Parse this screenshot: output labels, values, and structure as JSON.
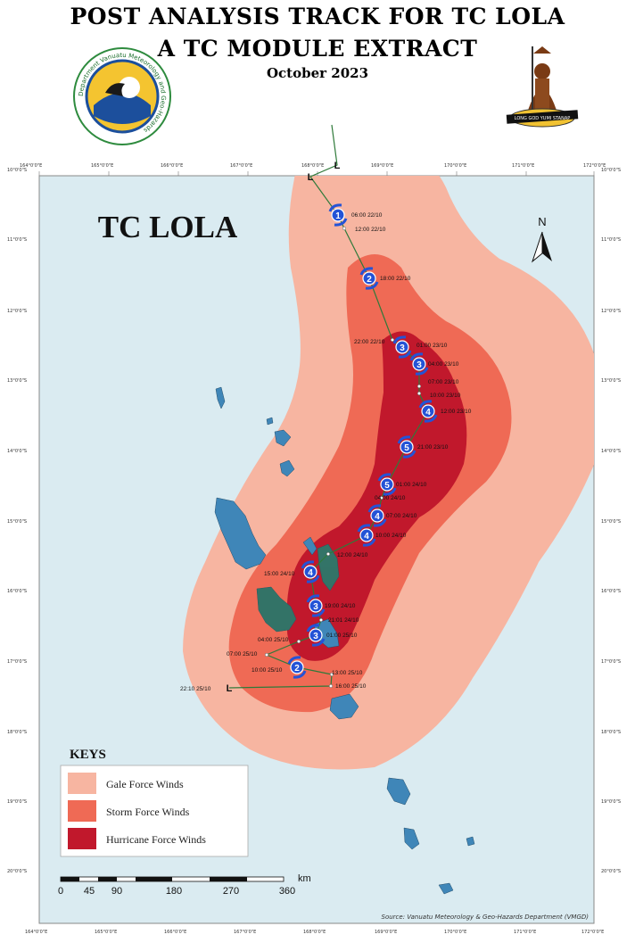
{
  "header": {
    "title_line1": "POST ANALYSIS TRACK FOR TC LOLA",
    "title_line2": "A TC MODULE EXTRACT",
    "date": "October 2023"
  },
  "logos": {
    "left_ring_text": "Department Vanuatu Meteorology and Geo-Hazards",
    "right_motto": "LONG GOD YUMI STANAP"
  },
  "map": {
    "title": "TC LOLA",
    "north_label": "N",
    "longitudes": [
      "164°0'0\"E",
      "165°0'0\"E",
      "166°0'0\"E",
      "167°0'0\"E",
      "168°0'0\"E",
      "169°0'0\"E",
      "170°0'0\"E",
      "171°0'0\"E",
      "172°0'0\"E"
    ],
    "latitudes": [
      "10°0'0\"S",
      "11°0'0\"S",
      "12°0'0\"S",
      "13°0'0\"S",
      "14°0'0\"S",
      "15°0'0\"S",
      "16°0'0\"S",
      "17°0'0\"S",
      "18°0'0\"S",
      "19°0'0\"S",
      "20°0'0\"S"
    ],
    "colors": {
      "sea": "#daebf1",
      "gale": "#f7b5a1",
      "storm": "#ef6a55",
      "hurricane": "#c1182c",
      "land": "#3f86b8",
      "track": "#2f7a3a",
      "symbol": "#2453d6"
    },
    "track": [
      {
        "marker": "L",
        "time": ""
      },
      {
        "marker": "L",
        "time": ""
      },
      {
        "marker": "1",
        "time": "06:00 22/10"
      },
      {
        "marker": "",
        "time": "12:00 22/10"
      },
      {
        "marker": "2",
        "time": "18:00 22/10"
      },
      {
        "marker": "",
        "time": "22:00 22/10"
      },
      {
        "marker": "3",
        "time": "01:00 23/10"
      },
      {
        "marker": "3",
        "time": "04:00 23/10"
      },
      {
        "marker": "",
        "time": "07:00 23/10"
      },
      {
        "marker": "",
        "time": "10:00 23/10"
      },
      {
        "marker": "4",
        "time": "12:00 23/10"
      },
      {
        "marker": "5",
        "time": "21:00 23/10"
      },
      {
        "marker": "5",
        "time": "01:00 24/10"
      },
      {
        "marker": "",
        "time": "04:00 24/10"
      },
      {
        "marker": "4",
        "time": "07:00 24/10"
      },
      {
        "marker": "4",
        "time": "10:00 24/10"
      },
      {
        "marker": "",
        "time": "12:00 24/10"
      },
      {
        "marker": "4",
        "time": "15:00 24/10"
      },
      {
        "marker": "3",
        "time": "19:00 24/10"
      },
      {
        "marker": "",
        "time": "21:01 24/10"
      },
      {
        "marker": "3",
        "time": "01:00 25/10"
      },
      {
        "marker": "",
        "time": "04:00 25/10"
      },
      {
        "marker": "",
        "time": "07:00 25/10"
      },
      {
        "marker": "2",
        "time": "10:00 25/10"
      },
      {
        "marker": "",
        "time": "13:00 25/10"
      },
      {
        "marker": "",
        "time": "16:00 25/10"
      },
      {
        "marker": "L",
        "time": "22:10 25/10"
      }
    ]
  },
  "legend": {
    "title": "KEYS",
    "items": [
      {
        "label": "Gale Force Winds",
        "color": "#f7b5a1"
      },
      {
        "label": "Storm Force Winds",
        "color": "#ef6a55"
      },
      {
        "label": "Hurricane Force Winds",
        "color": "#c1182c"
      }
    ]
  },
  "scale_bar": {
    "ticks": [
      "0",
      "45",
      "90",
      "180",
      "270",
      "360"
    ],
    "unit": "km"
  },
  "source": "Source: Vanuatu Meteorology & Geo-Hazards Department (VMGD)"
}
